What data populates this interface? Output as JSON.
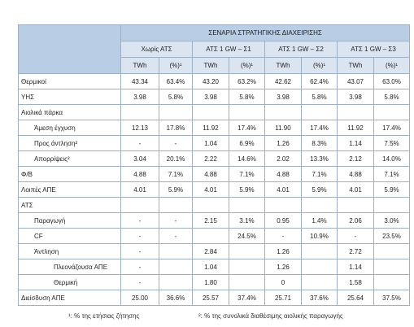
{
  "table": {
    "header": {
      "title": "ΣΕΝΑΡΙΑ ΣΤΡΑΤΗΓΙΚΗΣ ΔΙΑΧΕΙΡΙΣΗΣ",
      "scenarios": [
        "Χωρίς ΑΤΣ",
        "ΑΤΣ 1 GW – Σ1",
        "ΑΤΣ 1 GW – Σ2",
        "ΑΤΣ 1 GW – Σ3"
      ],
      "units": [
        "TWh",
        "(%)¹",
        "TWh",
        "(%)¹",
        "TWh",
        "(%)¹",
        "TWh",
        "(%)¹"
      ]
    },
    "rows": [
      {
        "label": "Θερμικοί",
        "cells": [
          "43.34",
          "63.4%",
          "43.20",
          "63.2%",
          "42.62",
          "62.4%",
          "43.07",
          "63.0%"
        ]
      },
      {
        "label": "ΥΗΣ",
        "cells": [
          "3.98",
          "5.8%",
          "3.98",
          "5.8%",
          "3.98",
          "5.8%",
          "3.98",
          "5.8%"
        ]
      },
      {
        "label": "Αιολικά πάρκα",
        "cells": [
          null,
          null,
          null,
          null,
          null,
          null,
          null,
          null
        ]
      },
      {
        "label": "Άμεση έγχυση",
        "cells": [
          "12.13",
          "17.8%",
          "11.92",
          "17.4%",
          "11.90",
          "17.4%",
          "11.92",
          "17.4%"
        ]
      },
      {
        "label": "Προς άντληση²",
        "cells": [
          "-",
          "-",
          "1.04",
          "6.9%",
          "1.26",
          "8.3%",
          "1.14",
          "7.5%"
        ]
      },
      {
        "label": "Απορρίψεις²",
        "cells": [
          "3.04",
          "20.1%",
          "2.22",
          "14.6%",
          "2.02",
          "13.3%",
          "2.12",
          "14.0%"
        ]
      },
      {
        "label": "Φ/Β",
        "cells": [
          "4.88",
          "7.1%",
          "4.88",
          "7.1%",
          "4.88",
          "7.1%",
          "4.88",
          "7.1%"
        ]
      },
      {
        "label": "Λοιπές ΑΠΕ",
        "cells": [
          "4.01",
          "5.9%",
          "4.01",
          "5.9%",
          "4.01",
          "5.9%",
          "4.01",
          "5.9%"
        ]
      },
      {
        "label": "ΑΤΣ",
        "cells": [
          null,
          null,
          null,
          null,
          null,
          null,
          null,
          null
        ]
      },
      {
        "label": "Παραγωγή",
        "cells": [
          "-",
          "-",
          "2.15",
          "3.1%",
          "0.95",
          "1.4%",
          "2.06",
          "3.0%"
        ]
      },
      {
        "label": "CF",
        "cells": [
          "-",
          "-",
          null,
          "24.5%",
          "-",
          "10.9%",
          "-",
          "23.5%"
        ]
      },
      {
        "label": "Άντληση",
        "cells": [
          "-",
          null,
          "2.84",
          null,
          "1.26",
          null,
          "2.72",
          null
        ]
      },
      {
        "label": "Πλεονάζουσα ΑΠΕ",
        "cells": [
          "-",
          null,
          "1.04",
          null,
          "1.26",
          null,
          "1.14",
          null
        ]
      },
      {
        "label": "Θερμική",
        "cells": [
          "-",
          null,
          "1.80",
          null,
          "0",
          null,
          "1.58",
          null
        ]
      },
      {
        "label": "Διείσδυση ΑΠΕ",
        "cells": [
          "25.00",
          "36.6%",
          "25.57",
          "37.4%",
          "25.71",
          "37.6%",
          "25.64",
          "37.5%"
        ]
      }
    ]
  },
  "footnotes": [
    "¹: % της ετήσιας ζήτησης",
    "²: % της συνολικά διαθέσιμης αιολικής παραγωγής"
  ]
}
